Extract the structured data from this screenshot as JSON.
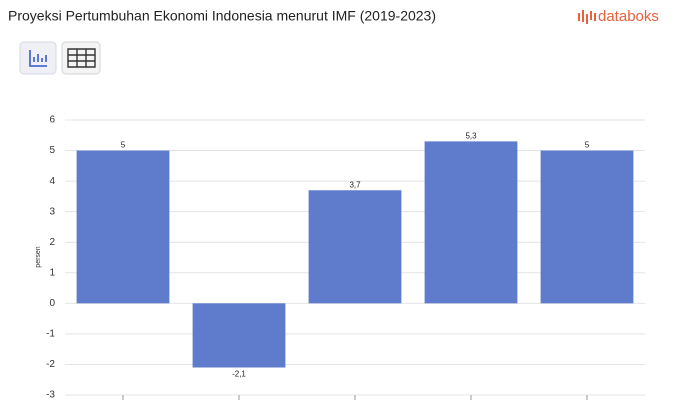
{
  "chart_data": {
    "type": "bar",
    "title": "Proyeksi Pertumbuhan Ekonomi Indonesia menurut IMF (2019-2023)",
    "y_label": "persen",
    "categories": [
      null,
      null,
      null,
      null,
      null
    ],
    "values": [
      5,
      -2.1,
      3.7,
      5.3,
      5
    ],
    "value_labels": [
      "5",
      "-2,1",
      "3,7",
      "5,3",
      "5"
    ],
    "color": "#5f7bcb",
    "ylim": [
      -3,
      6
    ],
    "yticks": [
      -3,
      -2,
      -1,
      0,
      1,
      2,
      3,
      4,
      5,
      6
    ],
    "grid": true
  },
  "header": {
    "logo": "databoks"
  }
}
